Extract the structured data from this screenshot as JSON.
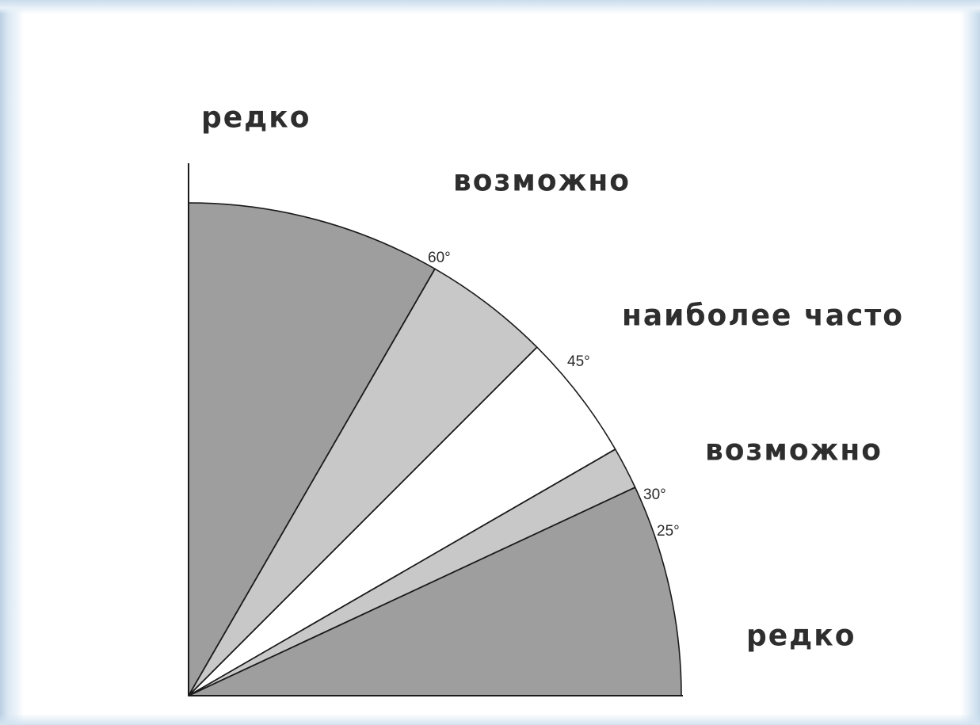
{
  "zones": [
    {
      "id": "rare-top",
      "label": "редко",
      "from_deg": 60,
      "to_deg": 90,
      "fill": "#9e9e9e"
    },
    {
      "id": "possible-upper",
      "label": "возможно",
      "from_deg": 45,
      "to_deg": 60,
      "fill": "#c8c8c8"
    },
    {
      "id": "most-frequent",
      "label": "наиболее часто",
      "from_deg": 30,
      "to_deg": 45,
      "fill": "#ffffff"
    },
    {
      "id": "possible-lower",
      "label": "возможно",
      "from_deg": 25,
      "to_deg": 30,
      "fill": "#c8c8c8"
    },
    {
      "id": "rare-bottom",
      "label": "редко",
      "from_deg": 0,
      "to_deg": 25,
      "fill": "#9e9e9e"
    }
  ],
  "angle_marks": [
    {
      "value": 60,
      "text": "60°"
    },
    {
      "value": 45,
      "text": "45°"
    },
    {
      "value": 30,
      "text": "30°"
    },
    {
      "value": 25,
      "text": "25°"
    }
  ],
  "colors": {
    "frame": "#cfe0ee",
    "outline": "#1a1a1a",
    "text": "#2e2e2e"
  }
}
